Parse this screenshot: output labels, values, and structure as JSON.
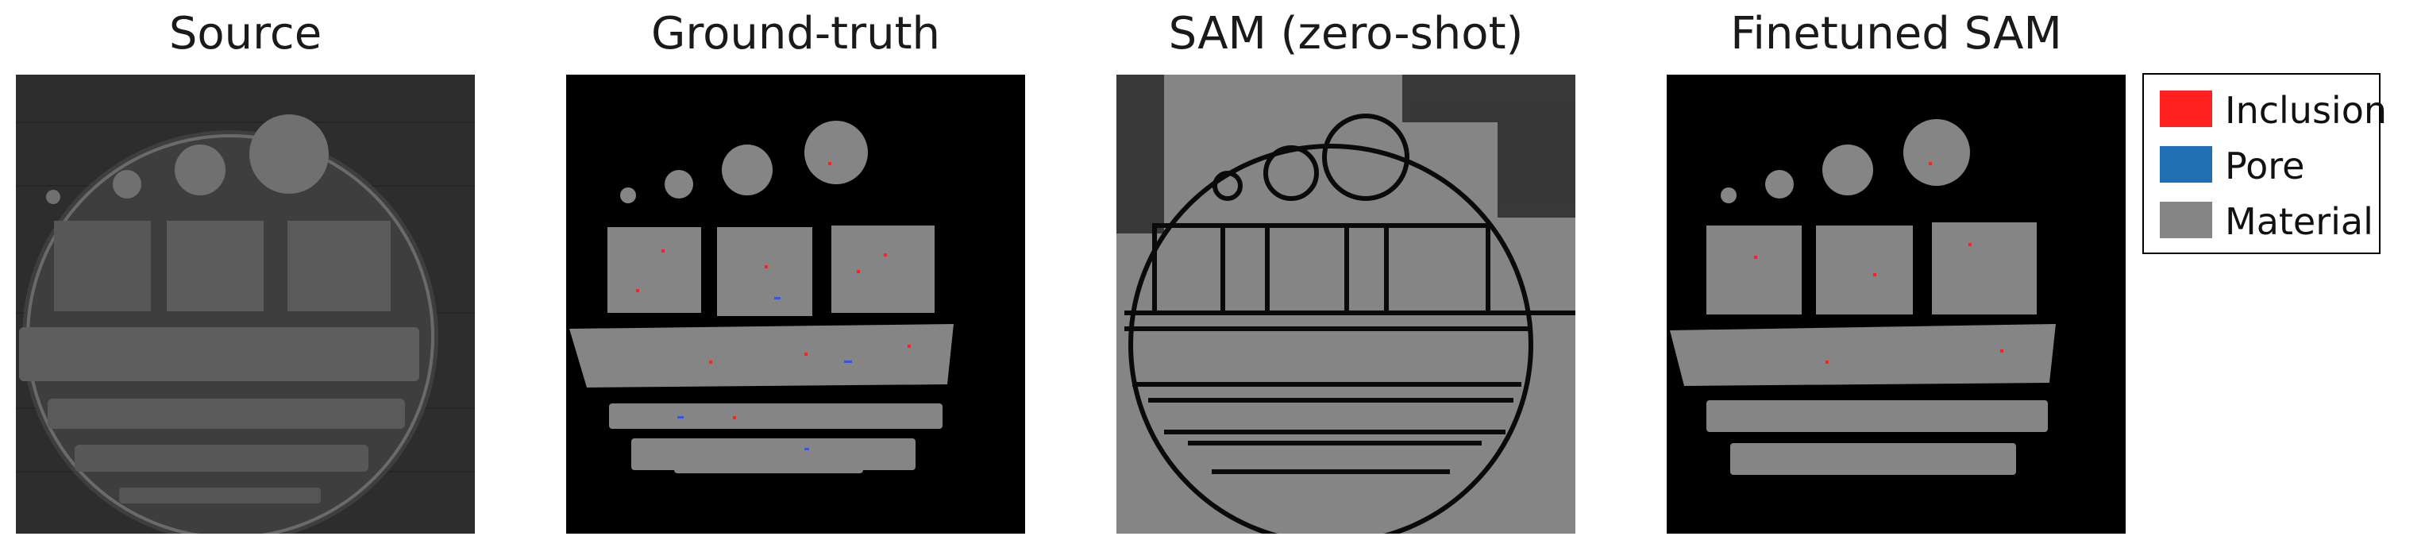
{
  "panels": [
    {
      "title": "Source"
    },
    {
      "title": "Ground-truth"
    },
    {
      "title": "SAM (zero-shot)"
    },
    {
      "title": "Finetuned SAM"
    }
  ],
  "legend": {
    "items": [
      {
        "label": "Inclusion",
        "color": "#ff2020"
      },
      {
        "label": "Pore",
        "color": "#1f6fb4"
      },
      {
        "label": "Material",
        "color": "#858585"
      }
    ]
  },
  "colors": {
    "background_black": "#000000",
    "material_gray": "#858585",
    "source_gray": "#5a5a5a",
    "source_bg": "#2b2b2b"
  }
}
